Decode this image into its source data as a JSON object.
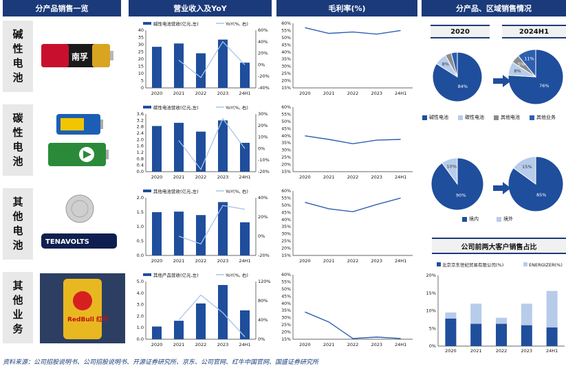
{
  "headers": {
    "col1": "分产品销售一览",
    "col2": "营业收入及YoY",
    "col3": "毛利率(%)",
    "col4": "分产品、区域销售情况"
  },
  "rows": [
    {
      "label": [
        "碱",
        "性",
        "电",
        "池"
      ]
    },
    {
      "label": [
        "碳",
        "性",
        "电",
        "池"
      ]
    },
    {
      "label": [
        "其",
        "他",
        "电",
        "池"
      ]
    },
    {
      "label": [
        "其",
        "他",
        "业",
        "务"
      ]
    }
  ],
  "products": {
    "nanfu": "南孚",
    "tenavolts": "TENAVOLTS",
    "redbull": "RedBull 红牛"
  },
  "colors": {
    "bar": "#1f4e9c",
    "line": "#a8c4e8",
    "margin": "#2d5fb0",
    "light": "#b7cceb",
    "header": "#1b3a7a"
  },
  "chart_data": [
    {
      "type": "bar",
      "title": "",
      "legend": [
        "碱性电池营收(亿元,左)",
        "YoY(%, 右)"
      ],
      "categories": [
        "2020",
        "2021",
        "2022",
        "2023",
        "24H1"
      ],
      "series": [
        {
          "name": "碱性电池营收(亿元,左)",
          "values": [
            28.5,
            30.8,
            24.0,
            33.5,
            17.5
          ]
        },
        {
          "name": "YoY(%, 右)",
          "values": [
            null,
            8,
            -22,
            40,
            0
          ]
        }
      ],
      "ylim": [
        0,
        40
      ],
      "yticks": [
        "0",
        "5",
        "10",
        "15",
        "20",
        "25",
        "30",
        "35",
        "40"
      ],
      "y2ticks": [
        "-40%",
        "-20%",
        "0%",
        "20%",
        "40%",
        "60%"
      ]
    },
    {
      "type": "bar",
      "title": "",
      "legend": [
        "碳性电池营收(亿元,左)",
        "YoY(%, 右)"
      ],
      "categories": [
        "2020",
        "2021",
        "2022",
        "2023",
        "24H1"
      ],
      "series": [
        {
          "name": "碳性电池营收(亿元,左)",
          "values": [
            2.85,
            3.05,
            2.5,
            3.2,
            1.8
          ]
        },
        {
          "name": "YoY(%, 右)",
          "values": [
            null,
            7,
            -18,
            26,
            0
          ]
        }
      ],
      "ylim": [
        0,
        3.6
      ],
      "yticks": [
        "0.0",
        "0.4",
        "0.8",
        "1.2",
        "1.6",
        "2.0",
        "2.4",
        "2.8",
        "3.2",
        "3.6"
      ],
      "y2ticks": [
        "-20%",
        "-10%",
        "0%",
        "10%",
        "20%",
        "30%"
      ]
    },
    {
      "type": "bar",
      "title": "",
      "legend": [
        "其他电池营收(亿元,左)",
        "YoY(%, 右)"
      ],
      "categories": [
        "2020",
        "2021",
        "2022",
        "2023",
        "24H1"
      ],
      "series": [
        {
          "name": "其他电池营收(亿元,左)",
          "values": [
            1.5,
            1.52,
            1.4,
            1.85,
            1.15
          ]
        },
        {
          "name": "YoY(%, 右)",
          "values": [
            null,
            0,
            -8,
            32,
            28
          ]
        }
      ],
      "ylim": [
        0,
        2.0
      ],
      "yticks": [
        "0.0",
        "0.5",
        "1.0",
        "1.5",
        "2.0"
      ],
      "y2ticks": [
        "-20%",
        "0%",
        "20%",
        "40%"
      ]
    },
    {
      "type": "bar",
      "title": "",
      "legend": [
        "其他产品营收(亿元,左)",
        "YoY(%, 右)"
      ],
      "categories": [
        "2020",
        "2021",
        "2022",
        "2023",
        "24H1"
      ],
      "series": [
        {
          "name": "其他产品营收(亿元,左)",
          "values": [
            1.1,
            1.6,
            3.1,
            4.7,
            2.5
          ]
        },
        {
          "name": "YoY(%, 右)",
          "values": [
            null,
            40,
            92,
            55,
            5
          ]
        }
      ],
      "ylim": [
        0,
        5.0
      ],
      "yticks": [
        "0.0",
        "1.0",
        "2.0",
        "3.0",
        "4.0",
        "5.0"
      ],
      "y2ticks": [
        "0%",
        "40%",
        "80%",
        "120%"
      ]
    },
    {
      "type": "line",
      "title": "",
      "categories": [
        "2020",
        "2021",
        "2022",
        "2023",
        "24H1"
      ],
      "series": [
        {
          "name": "",
          "values": [
            57,
            53,
            54,
            52.5,
            55
          ]
        }
      ],
      "ylim": [
        15,
        60
      ],
      "yticks": [
        "15%",
        "20%",
        "25%",
        "30%",
        "35%",
        "40%",
        "45%",
        "50%",
        "55%",
        "60%"
      ]
    },
    {
      "type": "line",
      "title": "",
      "categories": [
        "2020",
        "2021",
        "2022",
        "2023",
        "24H1"
      ],
      "series": [
        {
          "name": "",
          "values": [
            40,
            37.5,
            34.5,
            37,
            37.5
          ]
        }
      ],
      "ylim": [
        15,
        60
      ],
      "yticks": [
        "15%",
        "20%",
        "25%",
        "30%",
        "35%",
        "40%",
        "45%",
        "50%",
        "55%",
        "60%"
      ]
    },
    {
      "type": "line",
      "title": "",
      "categories": [
        "2020",
        "2021",
        "2022",
        "2023",
        "24H1"
      ],
      "series": [
        {
          "name": "",
          "values": [
            52,
            47.5,
            45.5,
            50.5,
            55
          ]
        }
      ],
      "ylim": [
        15,
        60
      ],
      "yticks": [
        "15%",
        "20%",
        "25%",
        "30%",
        "35%",
        "40%",
        "45%",
        "50%",
        "55%",
        "60%"
      ]
    },
    {
      "type": "line",
      "title": "",
      "categories": [
        "2020",
        "2021",
        "2022",
        "2023",
        "24H1"
      ],
      "series": [
        {
          "name": "",
          "values": [
            34,
            27,
            15.5,
            16.5,
            15.5
          ]
        }
      ],
      "ylim": [
        15,
        60
      ],
      "yticks": [
        "15%",
        "20%",
        "25%",
        "30%",
        "35%",
        "40%",
        "45%",
        "50%",
        "55%",
        "60%"
      ]
    },
    {
      "type": "pie",
      "title": "2020",
      "labels": [
        "碱性电池",
        "碳性电池",
        "其他电池",
        "其他业务"
      ],
      "values": [
        84,
        8,
        4,
        4
      ],
      "value_labels": [
        "84%",
        "8%",
        "",
        ""
      ]
    },
    {
      "type": "pie",
      "title": "2024H1",
      "labels": [
        "碱性电池",
        "碳性电池",
        "其他电池",
        "其他业务"
      ],
      "values": [
        76,
        8,
        5,
        11
      ],
      "value_labels": [
        "76%",
        "8%",
        "5%",
        "11%"
      ]
    },
    {
      "type": "pie",
      "title": "",
      "labels": [
        "境内",
        "境外"
      ],
      "values": [
        90,
        10
      ],
      "value_labels": [
        "90%",
        "10%"
      ]
    },
    {
      "type": "pie",
      "title": "",
      "labels": [
        "境内",
        "境外"
      ],
      "values": [
        85,
        15
      ],
      "value_labels": [
        "85%",
        "15%"
      ]
    },
    {
      "type": "bar",
      "title": "公司前两大客户销售占比",
      "legend": [
        "北京京东世纪贸易有限公司(%)",
        "ENERGIZER(%)"
      ],
      "categories": [
        "2020",
        "2021",
        "2022",
        "2023",
        "24H1"
      ],
      "series": [
        {
          "name": "北京京东世纪贸易有限公司(%)",
          "values": [
            7.8,
            6.3,
            6.3,
            5.9,
            5.3
          ]
        },
        {
          "name": "ENERGIZER(%)",
          "values": [
            1.7,
            5.7,
            1.7,
            6.1,
            10.3
          ]
        }
      ],
      "ylim": [
        0,
        20
      ],
      "yticks": [
        "0%",
        "5%",
        "10%",
        "15%",
        "20%"
      ]
    }
  ],
  "footer": "资料来源：公司招股说明书、公司招股说明书、开源证券研究所、京东、公司官网、红牛中国官网、国盛证券研究所"
}
